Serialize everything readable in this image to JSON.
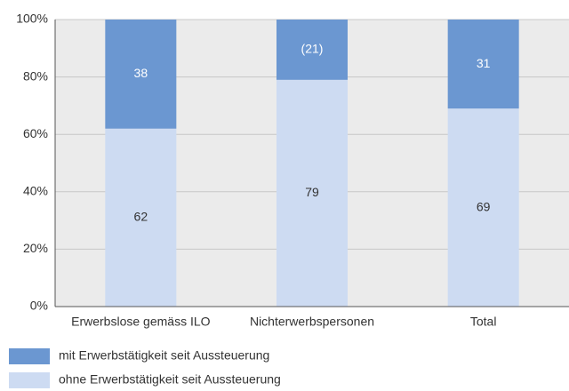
{
  "chart_data": {
    "type": "stacked_bar",
    "categories": [
      "Erwerbslose gemäss ILO",
      "Nichterwerbspersonen",
      "Total"
    ],
    "series": [
      {
        "name": "mit Erwerbstätigkeit seit Aussteuerung",
        "color": "#6b97d1",
        "values": [
          38,
          21,
          31
        ],
        "value_labels": [
          "38",
          "(21)",
          "31"
        ]
      },
      {
        "name": "ohne Erwerbstätigkeit seit Aussteuerung",
        "color": "#cddbf2",
        "values": [
          62,
          79,
          69
        ]
      }
    ],
    "ylim": [
      0,
      100
    ],
    "yticks": [
      {
        "value": 0,
        "label": "0%"
      },
      {
        "value": 20,
        "label": "20%"
      },
      {
        "value": 40,
        "label": "40%"
      },
      {
        "value": 60,
        "label": "60%"
      },
      {
        "value": 80,
        "label": "80%"
      },
      {
        "value": 100,
        "label": "100%"
      }
    ],
    "grid": true
  }
}
